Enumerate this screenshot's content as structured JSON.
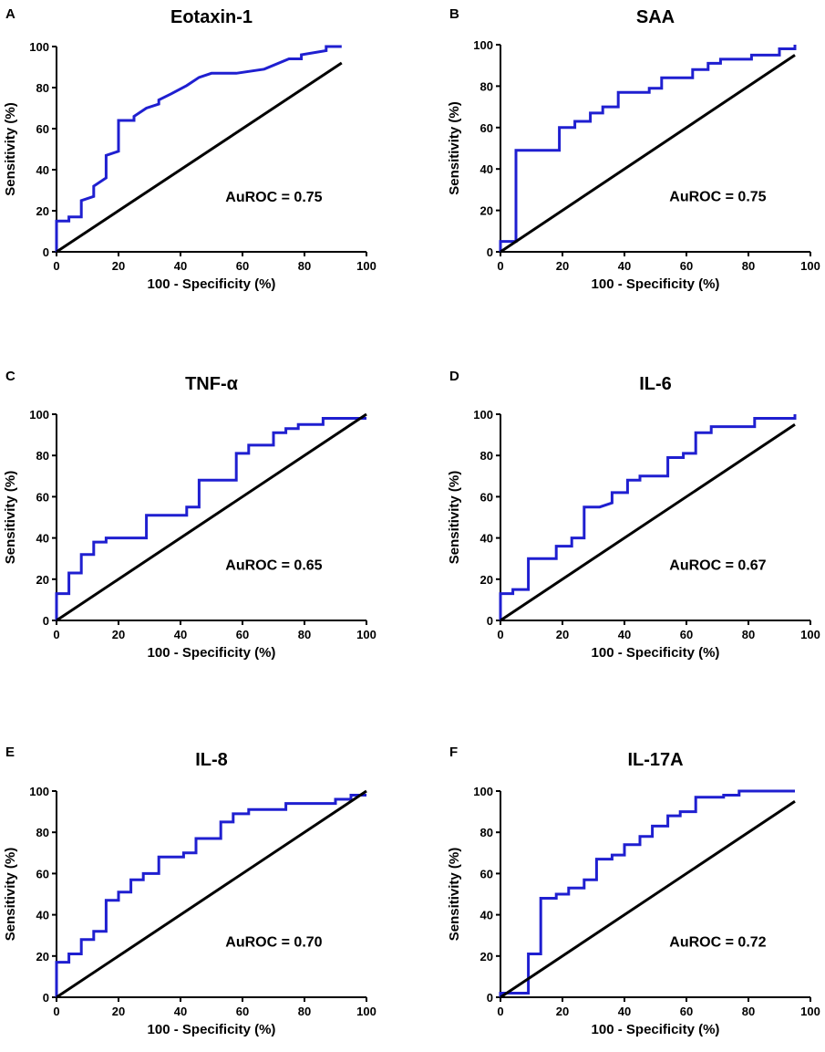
{
  "chart_data": [
    {
      "type": "line",
      "letter": "A",
      "title": "Eotaxin-1",
      "xlabel": "100 - Specificity (%)",
      "ylabel": "Sensitivity (%)",
      "xlim": [
        0,
        100
      ],
      "ylim": [
        0,
        100
      ],
      "xticks": [
        0,
        20,
        40,
        60,
        80,
        100
      ],
      "yticks": [
        0,
        20,
        40,
        60,
        80,
        100
      ],
      "annotation": "AuROC = 0.75",
      "series": [
        {
          "name": "ROC",
          "color": "#1f1fd0",
          "points": [
            [
              0,
              0
            ],
            [
              0,
              15
            ],
            [
              4,
              15
            ],
            [
              4,
              17
            ],
            [
              8,
              17
            ],
            [
              8,
              25
            ],
            [
              12,
              27
            ],
            [
              12,
              32
            ],
            [
              16,
              36
            ],
            [
              16,
              47
            ],
            [
              20,
              49
            ],
            [
              20,
              64
            ],
            [
              25,
              64
            ],
            [
              25,
              66
            ],
            [
              29,
              70
            ],
            [
              33,
              72
            ],
            [
              33,
              74
            ],
            [
              37,
              77
            ],
            [
              42,
              81
            ],
            [
              46,
              85
            ],
            [
              50,
              87
            ],
            [
              58,
              87
            ],
            [
              67,
              89
            ],
            [
              75,
              94
            ],
            [
              79,
              94
            ],
            [
              79,
              96
            ],
            [
              87,
              98
            ],
            [
              87,
              100
            ],
            [
              92,
              100
            ]
          ]
        },
        {
          "name": "Reference",
          "color": "#000000",
          "points": [
            [
              0,
              0
            ],
            [
              92,
              92
            ]
          ]
        }
      ]
    },
    {
      "type": "line",
      "letter": "B",
      "title": "SAA",
      "xlabel": "100 - Specificity (%)",
      "ylabel": "Sensitivity (%)",
      "xlim": [
        0,
        100
      ],
      "ylim": [
        0,
        100
      ],
      "xticks": [
        0,
        20,
        40,
        60,
        80,
        100
      ],
      "yticks": [
        0,
        20,
        40,
        60,
        80,
        100
      ],
      "annotation": "AuROC = 0.75",
      "series": [
        {
          "name": "ROC",
          "color": "#1f1fd0",
          "points": [
            [
              0,
              0
            ],
            [
              0,
              5
            ],
            [
              5,
              5
            ],
            [
              5,
              49
            ],
            [
              19,
              49
            ],
            [
              19,
              60
            ],
            [
              24,
              60
            ],
            [
              24,
              63
            ],
            [
              29,
              63
            ],
            [
              29,
              67
            ],
            [
              33,
              67
            ],
            [
              33,
              70
            ],
            [
              38,
              70
            ],
            [
              38,
              77
            ],
            [
              48,
              77
            ],
            [
              48,
              79
            ],
            [
              52,
              79
            ],
            [
              52,
              84
            ],
            [
              62,
              84
            ],
            [
              62,
              88
            ],
            [
              67,
              88
            ],
            [
              67,
              91
            ],
            [
              71,
              91
            ],
            [
              71,
              93
            ],
            [
              81,
              93
            ],
            [
              81,
              95
            ],
            [
              90,
              95
            ],
            [
              90,
              98
            ],
            [
              95,
              98
            ],
            [
              95,
              100
            ]
          ]
        },
        {
          "name": "Reference",
          "color": "#000000",
          "points": [
            [
              0,
              0
            ],
            [
              95,
              95
            ]
          ]
        }
      ]
    },
    {
      "type": "line",
      "letter": "C",
      "title": "TNF-α",
      "xlabel": "100 - Specificity (%)",
      "ylabel": "Sensitivity (%)",
      "xlim": [
        0,
        100
      ],
      "ylim": [
        0,
        100
      ],
      "xticks": [
        0,
        20,
        40,
        60,
        80,
        100
      ],
      "yticks": [
        0,
        20,
        40,
        60,
        80,
        100
      ],
      "annotation": "AuROC = 0.65",
      "series": [
        {
          "name": "ROC",
          "color": "#1f1fd0",
          "points": [
            [
              0,
              0
            ],
            [
              0,
              13
            ],
            [
              4,
              13
            ],
            [
              4,
              23
            ],
            [
              8,
              23
            ],
            [
              8,
              32
            ],
            [
              12,
              32
            ],
            [
              12,
              38
            ],
            [
              16,
              38
            ],
            [
              16,
              40
            ],
            [
              29,
              40
            ],
            [
              29,
              51
            ],
            [
              42,
              51
            ],
            [
              42,
              55
            ],
            [
              46,
              55
            ],
            [
              46,
              68
            ],
            [
              58,
              68
            ],
            [
              58,
              81
            ],
            [
              62,
              81
            ],
            [
              62,
              85
            ],
            [
              70,
              85
            ],
            [
              70,
              91
            ],
            [
              74,
              91
            ],
            [
              74,
              93
            ],
            [
              78,
              93
            ],
            [
              78,
              95
            ],
            [
              86,
              95
            ],
            [
              86,
              98
            ],
            [
              100,
              98
            ]
          ]
        },
        {
          "name": "Reference",
          "color": "#000000",
          "points": [
            [
              0,
              0
            ],
            [
              100,
              100
            ]
          ]
        }
      ]
    },
    {
      "type": "line",
      "letter": "D",
      "title": "IL-6",
      "xlabel": "100 - Specificity (%)",
      "ylabel": "Sensitivity (%)",
      "xlim": [
        0,
        100
      ],
      "ylim": [
        0,
        100
      ],
      "xticks": [
        0,
        20,
        40,
        60,
        80,
        100
      ],
      "yticks": [
        0,
        20,
        40,
        60,
        80,
        100
      ],
      "annotation": "AuROC = 0.67",
      "series": [
        {
          "name": "ROC",
          "color": "#1f1fd0",
          "points": [
            [
              0,
              0
            ],
            [
              0,
              13
            ],
            [
              4,
              13
            ],
            [
              4,
              15
            ],
            [
              9,
              15
            ],
            [
              9,
              30
            ],
            [
              18,
              30
            ],
            [
              18,
              36
            ],
            [
              23,
              36
            ],
            [
              23,
              40
            ],
            [
              27,
              40
            ],
            [
              27,
              55
            ],
            [
              32,
              55
            ],
            [
              36,
              57
            ],
            [
              36,
              62
            ],
            [
              41,
              62
            ],
            [
              41,
              68
            ],
            [
              45,
              68
            ],
            [
              45,
              70
            ],
            [
              54,
              70
            ],
            [
              54,
              79
            ],
            [
              59,
              79
            ],
            [
              59,
              81
            ],
            [
              63,
              81
            ],
            [
              63,
              91
            ],
            [
              68,
              91
            ],
            [
              68,
              94
            ],
            [
              82,
              94
            ],
            [
              82,
              98
            ],
            [
              95,
              98
            ],
            [
              95,
              100
            ]
          ]
        },
        {
          "name": "Reference",
          "color": "#000000",
          "points": [
            [
              0,
              0
            ],
            [
              95,
              95
            ]
          ]
        }
      ]
    },
    {
      "type": "line",
      "letter": "E",
      "title": "IL-8",
      "xlabel": "100 - Specificity (%)",
      "ylabel": "Sensitivity (%)",
      "xlim": [
        0,
        100
      ],
      "ylim": [
        0,
        100
      ],
      "xticks": [
        0,
        20,
        40,
        60,
        80,
        100
      ],
      "yticks": [
        0,
        20,
        40,
        60,
        80,
        100
      ],
      "annotation": "AuROC = 0.70",
      "series": [
        {
          "name": "ROC",
          "color": "#1f1fd0",
          "points": [
            [
              0,
              0
            ],
            [
              0,
              17
            ],
            [
              4,
              17
            ],
            [
              4,
              21
            ],
            [
              8,
              21
            ],
            [
              8,
              28
            ],
            [
              12,
              28
            ],
            [
              12,
              32
            ],
            [
              16,
              32
            ],
            [
              16,
              47
            ],
            [
              20,
              47
            ],
            [
              20,
              51
            ],
            [
              24,
              51
            ],
            [
              24,
              57
            ],
            [
              28,
              57
            ],
            [
              28,
              60
            ],
            [
              33,
              60
            ],
            [
              33,
              68
            ],
            [
              41,
              68
            ],
            [
              41,
              70
            ],
            [
              45,
              70
            ],
            [
              45,
              77
            ],
            [
              53,
              77
            ],
            [
              53,
              85
            ],
            [
              57,
              85
            ],
            [
              57,
              89
            ],
            [
              62,
              89
            ],
            [
              62,
              91
            ],
            [
              74,
              91
            ],
            [
              74,
              94
            ],
            [
              90,
              94
            ],
            [
              90,
              96
            ],
            [
              95,
              96
            ],
            [
              95,
              98
            ],
            [
              100,
              98
            ]
          ]
        },
        {
          "name": "Reference",
          "color": "#000000",
          "points": [
            [
              0,
              0
            ],
            [
              100,
              100
            ]
          ]
        }
      ]
    },
    {
      "type": "line",
      "letter": "F",
      "title": "IL-17A",
      "xlabel": "100 - Specificity (%)",
      "ylabel": "Sensitivity (%)",
      "xlim": [
        0,
        100
      ],
      "ylim": [
        0,
        100
      ],
      "xticks": [
        0,
        20,
        40,
        60,
        80,
        100
      ],
      "yticks": [
        0,
        20,
        40,
        60,
        80,
        100
      ],
      "annotation": "AuROC = 0.72",
      "series": [
        {
          "name": "ROC",
          "color": "#1f1fd0",
          "points": [
            [
              0,
              0
            ],
            [
              0,
              2
            ],
            [
              9,
              2
            ],
            [
              9,
              21
            ],
            [
              13,
              21
            ],
            [
              13,
              48
            ],
            [
              18,
              48
            ],
            [
              18,
              50
            ],
            [
              22,
              50
            ],
            [
              22,
              53
            ],
            [
              27,
              53
            ],
            [
              27,
              57
            ],
            [
              31,
              57
            ],
            [
              31,
              67
            ],
            [
              36,
              67
            ],
            [
              36,
              69
            ],
            [
              40,
              69
            ],
            [
              40,
              74
            ],
            [
              45,
              74
            ],
            [
              45,
              78
            ],
            [
              49,
              78
            ],
            [
              49,
              83
            ],
            [
              54,
              83
            ],
            [
              54,
              88
            ],
            [
              58,
              88
            ],
            [
              58,
              90
            ],
            [
              63,
              90
            ],
            [
              63,
              97
            ],
            [
              72,
              97
            ],
            [
              72,
              98
            ],
            [
              77,
              98
            ],
            [
              77,
              100
            ],
            [
              95,
              100
            ]
          ]
        },
        {
          "name": "Reference",
          "color": "#000000",
          "points": [
            [
              0,
              0
            ],
            [
              95,
              95
            ]
          ]
        }
      ]
    }
  ]
}
